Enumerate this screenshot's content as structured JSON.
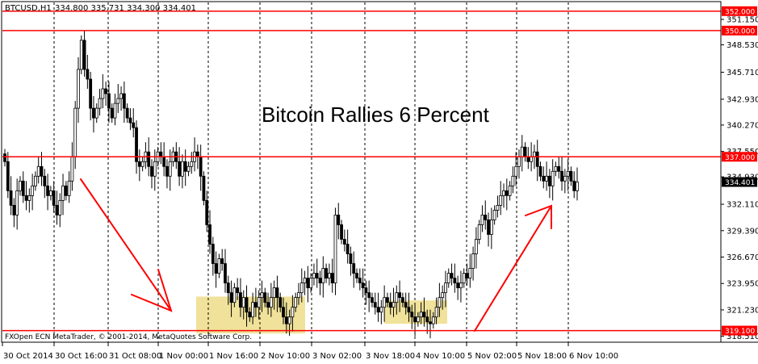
{
  "header": {
    "symbol_timeframe": "BTCUSD,H1",
    "ohlc": "334.800 335.731 334.300 334.401"
  },
  "footer": {
    "copyright": "FXOpen ECN MetaTrader, © 2001-2014, MetaQuotes Software Corp."
  },
  "chart_data": {
    "type": "candlestick",
    "title": "Bitcoin Rallies 6 Percent",
    "ylim": [
      317.9,
      352.9
    ],
    "y_ticks": [
      "351.150",
      "348.530",
      "345.710",
      "342.930",
      "340.270",
      "337.550",
      "334.930",
      "332.110",
      "329.390",
      "326.670",
      "323.950",
      "321.230",
      "318.510"
    ],
    "x_ticks": [
      "30 Oct 2014",
      "30 Oct 16:00",
      "31 Oct 08:00",
      "1 Nov 00:00",
      "1 Nov 16:00",
      "2 Nov 10:00",
      "3 Nov 02:00",
      "3 Nov 18:00",
      "4 Nov 10:00",
      "5 Nov 02:00",
      "5 Nov 18:00",
      "6 Nov 10:00"
    ],
    "period_separators": [
      "30 Oct 16:00",
      "31 Oct 08:00",
      "1 Nov 00:00",
      "1 Nov 16:00",
      "2 Nov 10:00",
      "3 Nov 02:00",
      "3 Nov 18:00",
      "4 Nov 10:00",
      "5 Nov 02:00",
      "5 Nov 18:00",
      "6 Nov 10:00"
    ],
    "levels": [
      {
        "label": "352.000",
        "value": 352.0
      },
      {
        "label": "350.000",
        "value": 350.0
      },
      {
        "label": "337.000",
        "value": 337.0
      },
      {
        "label": "319.100",
        "value": 319.1
      }
    ],
    "current_price": {
      "label": "334.401",
      "value": 334.401
    },
    "closes": [
      336.5,
      333.5,
      332.0,
      331.0,
      333.5,
      334.5,
      333.0,
      332.5,
      333.0,
      334.0,
      335.0,
      336.0,
      335.0,
      334.0,
      333.0,
      333.5,
      332.0,
      331.0,
      332.5,
      334.0,
      333.0,
      334.5,
      337.0,
      342.0,
      346.0,
      349.0,
      346.0,
      345.0,
      342.0,
      341.0,
      342.0,
      343.0,
      344.0,
      343.5,
      342.0,
      341.0,
      342.5,
      343.0,
      343.5,
      342.0,
      341.0,
      340.5,
      340.0,
      336.5,
      336.0,
      336.5,
      337.5,
      336.0,
      335.0,
      336.5,
      337.5,
      337.0,
      336.0,
      335.0,
      336.5,
      337.5,
      336.5,
      335.0,
      336.5,
      335.5,
      336.0,
      336.5,
      337.5,
      337.0,
      335.0,
      332.5,
      330.0,
      328.0,
      326.0,
      325.0,
      326.5,
      326.0,
      324.0,
      323.0,
      322.0,
      323.5,
      323.0,
      321.5,
      322.5,
      321.0,
      320.5,
      322.0,
      321.5,
      322.5,
      323.0,
      322.0,
      321.5,
      322.5,
      323.5,
      322.5,
      321.5,
      320.5,
      319.8,
      320.5,
      321.5,
      322.5,
      323.0,
      324.0,
      324.5,
      323.5,
      324.5,
      325.0,
      324.5,
      324.0,
      325.5,
      324.5,
      325.0,
      324.0,
      331.0,
      330.0,
      328.5,
      328.0,
      327.0,
      326.0,
      325.0,
      324.5,
      324.0,
      323.5,
      323.0,
      322.5,
      322.0,
      321.5,
      321.0,
      321.5,
      322.5,
      322.0,
      321.5,
      322.0,
      323.0,
      322.5,
      322.0,
      321.5,
      321.0,
      320.5,
      320.0,
      320.5,
      321.0,
      320.5,
      320.0,
      319.8,
      320.5,
      321.5,
      322.5,
      323.0,
      324.0,
      325.0,
      324.5,
      324.0,
      323.5,
      324.0,
      325.0,
      324.5,
      325.5,
      327.0,
      328.5,
      330.0,
      331.0,
      330.5,
      329.0,
      330.5,
      331.5,
      332.0,
      333.0,
      333.5,
      333.0,
      334.0,
      335.0,
      336.0,
      337.0,
      338.0,
      337.0,
      336.5,
      337.0,
      337.5,
      336.0,
      335.0,
      334.5,
      335.0,
      334.0,
      335.5,
      336.0,
      335.5,
      334.5,
      335.0,
      335.5,
      334.5,
      333.5,
      334.4
    ]
  }
}
